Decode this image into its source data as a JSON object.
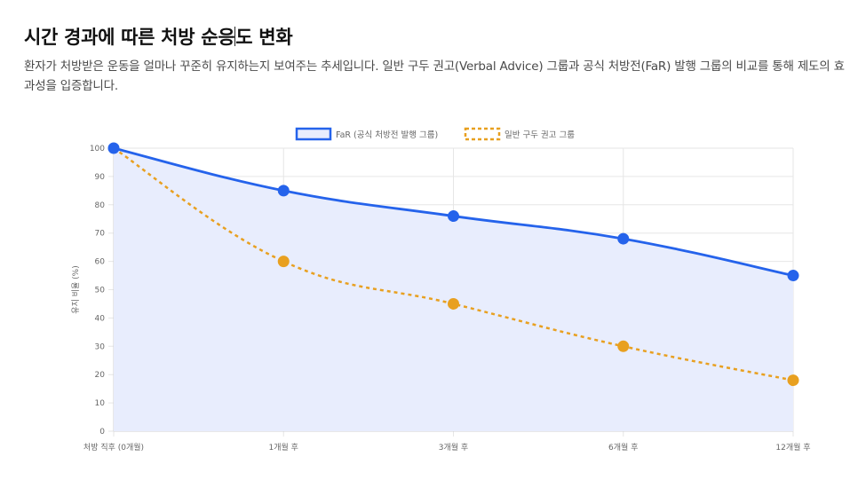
{
  "header": {
    "title_part1": "시간 경과에 따른 처방 순응",
    "title_part2": "도 변화",
    "description": "환자가 처방받은 운동을 얼마나 꾸준히 유지하는지 보여주는 추세입니다. 일반 구두 권고(Verbal Advice) 그룹과 공식 처방전(FaR) 발행 그룹의 비교를 통해 제도의 효과성을 입증합니다."
  },
  "colors": {
    "far": "#2563eb",
    "far_fill": "#e8edfd",
    "verbal": "#e8a020",
    "grid": "#e6e6e6"
  },
  "chart_data": {
    "type": "line",
    "title": "",
    "xlabel": "",
    "ylabel": "유지 비율 (%)",
    "ylim": [
      0,
      100
    ],
    "y_ticks": [
      0,
      10,
      20,
      30,
      40,
      50,
      60,
      70,
      80,
      90,
      100
    ],
    "categories": [
      "처방 직후 (0개월)",
      "1개월 후",
      "3개월 후",
      "6개월 후",
      "12개월 후"
    ],
    "legend_position": "top",
    "series": [
      {
        "name": "FaR (공식 처방전 발행 그룹)",
        "values": [
          100,
          85,
          76,
          68,
          55
        ],
        "style": "solid",
        "filled": true
      },
      {
        "name": "일반 구두 권고 그룹",
        "values": [
          100,
          60,
          45,
          30,
          18
        ],
        "style": "dashed",
        "filled": false
      }
    ]
  }
}
